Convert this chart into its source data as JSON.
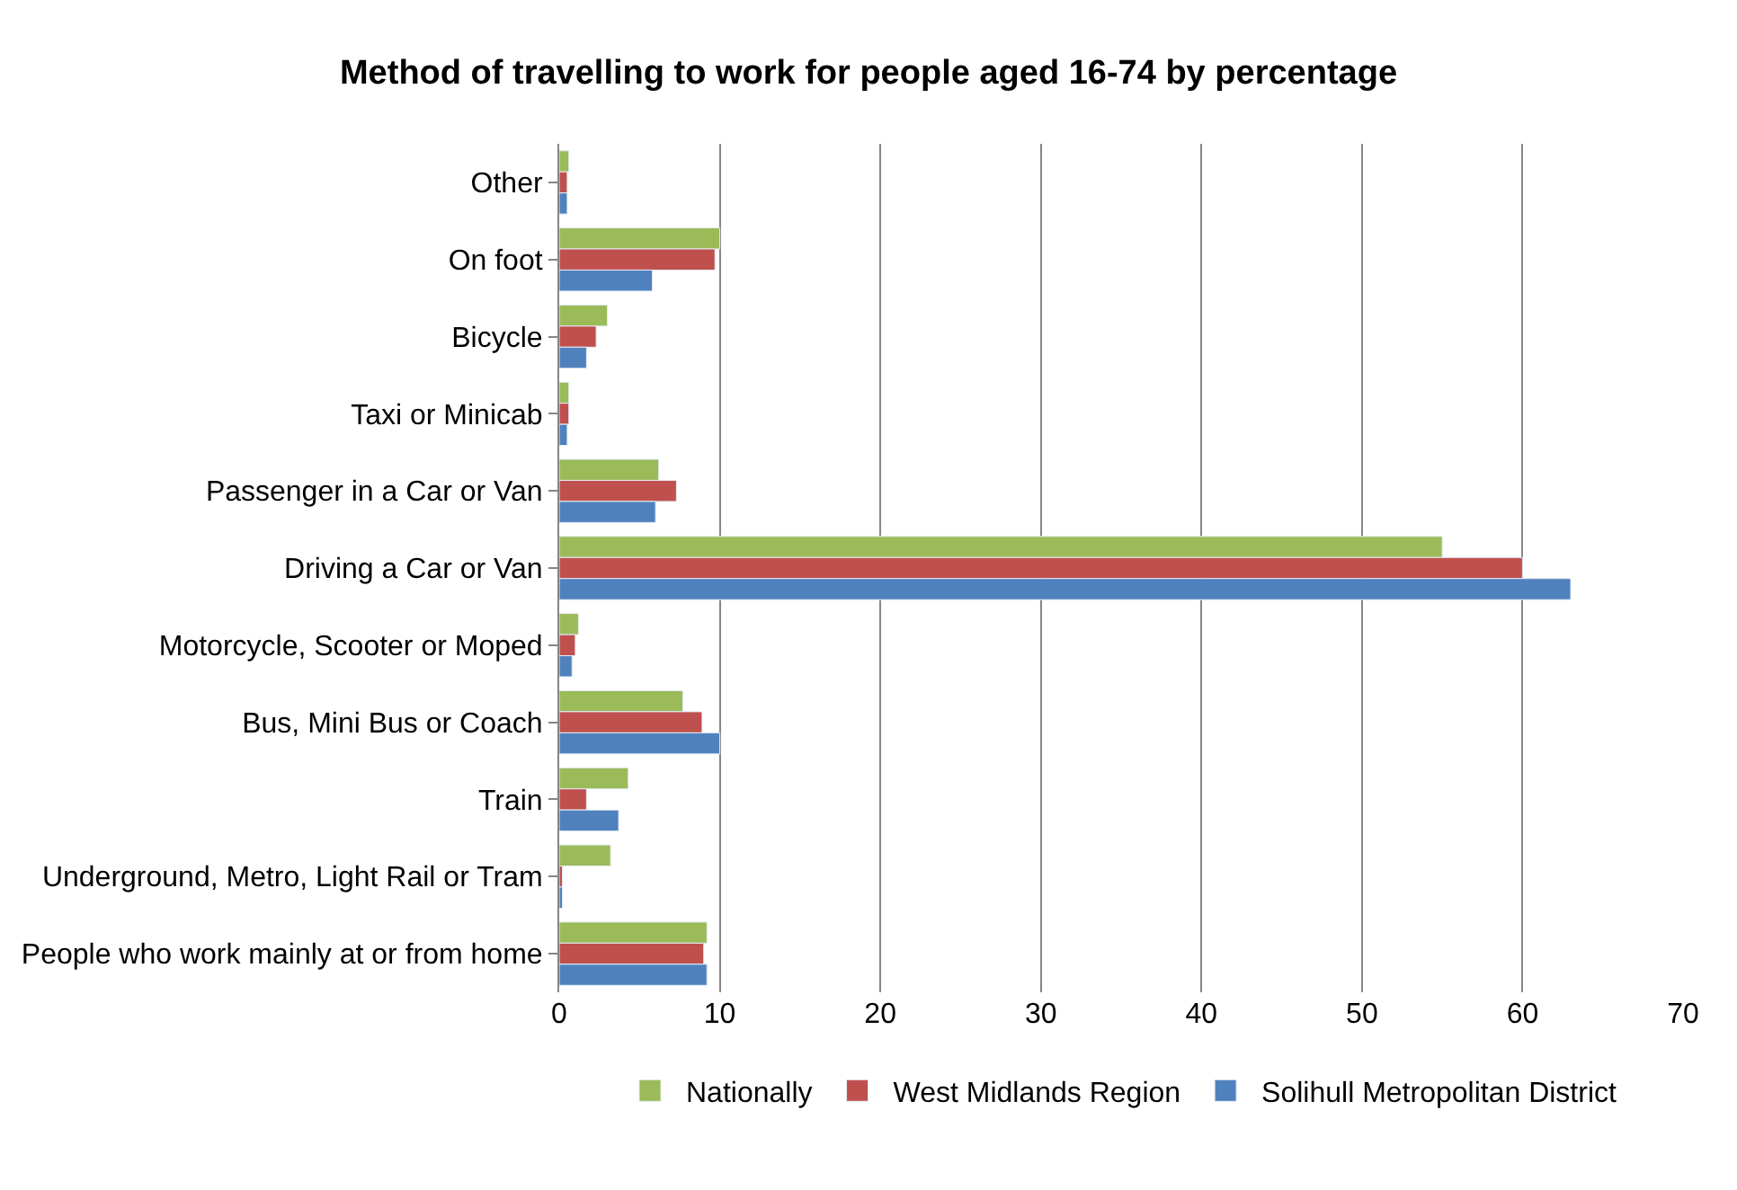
{
  "chart_data": {
    "type": "bar",
    "orientation": "horizontal",
    "title": "Method of travelling to work for people aged 16-74 by percentage",
    "categories": [
      "Other",
      "On foot",
      "Bicycle",
      "Taxi or Minicab",
      "Passenger in a Car or Van",
      "Driving a Car or Van",
      "Motorcycle, Scooter or Moped",
      "Bus, Mini Bus or Coach",
      "Train",
      "Underground, Metro, Light Rail or Tram",
      "People who work mainly at or from home"
    ],
    "series": [
      {
        "name": "Nationally",
        "color": "#9bbb59",
        "values": [
          0.6,
          10.0,
          3.0,
          0.6,
          6.2,
          55.0,
          1.2,
          7.7,
          4.3,
          3.2,
          9.2
        ]
      },
      {
        "name": "West Midlands Region",
        "color": "#c0504d",
        "values": [
          0.5,
          9.7,
          2.3,
          0.6,
          7.3,
          60.0,
          1.0,
          8.9,
          1.7,
          0.2,
          9.0
        ]
      },
      {
        "name": "Solihull Metropolitan District",
        "color": "#4f81bd",
        "values": [
          0.5,
          5.8,
          1.7,
          0.5,
          6.0,
          63.0,
          0.8,
          10.0,
          3.7,
          0.2,
          9.2
        ]
      }
    ],
    "xlim": [
      0,
      70
    ],
    "xticks": [
      0,
      10,
      20,
      30,
      40,
      50,
      60,
      70
    ],
    "grid": "x",
    "legend": "bottom"
  }
}
